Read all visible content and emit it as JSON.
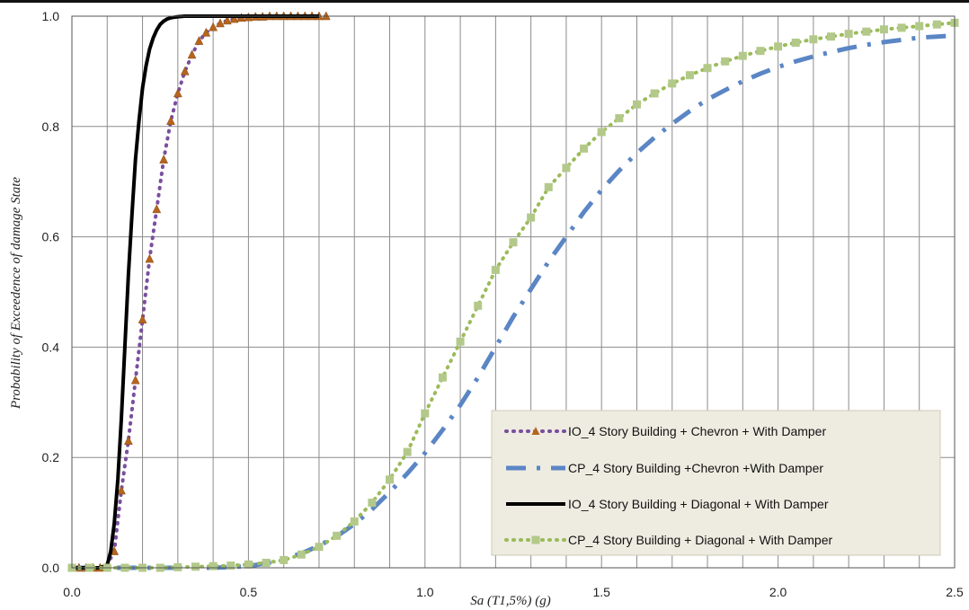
{
  "chart_data": {
    "type": "line",
    "title": "",
    "xlabel": "Sa (T1,5%) (g)",
    "ylabel": "Probability of Exceedence of damage State",
    "xlim": [
      0,
      2.5
    ],
    "ylim": [
      0,
      1.0
    ],
    "x_ticks": [
      "0.0",
      "0.5",
      "1.0",
      "1.5",
      "2.0",
      "2.5"
    ],
    "y_ticks": [
      "0.0",
      "0.2",
      "0.4",
      "0.6",
      "0.8",
      "1.0"
    ],
    "grid": true,
    "legend_position": "bottom-right",
    "series": [
      {
        "name": "IO_4 Story Building + Chevron + With Damper",
        "color": "#7a4f9e",
        "marker": "triangle",
        "line_style": "dotted",
        "x": [
          0.0,
          0.02,
          0.04,
          0.06,
          0.08,
          0.1,
          0.12,
          0.14,
          0.16,
          0.18,
          0.2,
          0.22,
          0.24,
          0.26,
          0.28,
          0.3,
          0.32,
          0.34,
          0.36,
          0.38,
          0.4,
          0.42,
          0.44,
          0.46,
          0.48,
          0.5,
          0.52,
          0.54,
          0.56,
          0.58,
          0.6,
          0.62,
          0.64,
          0.66,
          0.68,
          0.7,
          0.72
        ],
        "y": [
          0.0,
          0.0,
          0.0,
          0.0,
          0.0,
          0.005,
          0.03,
          0.14,
          0.23,
          0.34,
          0.45,
          0.56,
          0.65,
          0.74,
          0.81,
          0.86,
          0.9,
          0.93,
          0.955,
          0.97,
          0.98,
          0.987,
          0.992,
          0.995,
          0.997,
          0.998,
          0.999,
          0.999,
          1.0,
          1.0,
          1.0,
          1.0,
          1.0,
          1.0,
          1.0,
          1.0,
          1.0
        ]
      },
      {
        "name": "CP_4 Story Building +Chevron +With Damper",
        "color": "#5b86c5",
        "marker": "none",
        "line_style": "dash-dot",
        "x": [
          0.0,
          0.1,
          0.2,
          0.3,
          0.4,
          0.5,
          0.55,
          0.6,
          0.65,
          0.7,
          0.75,
          0.8,
          0.85,
          0.9,
          0.95,
          1.0,
          1.05,
          1.1,
          1.15,
          1.2,
          1.25,
          1.3,
          1.35,
          1.4,
          1.45,
          1.5,
          1.55,
          1.6,
          1.65,
          1.7,
          1.75,
          1.8,
          1.85,
          1.9,
          1.95,
          2.0,
          2.05,
          2.1,
          2.15,
          2.2,
          2.25,
          2.3,
          2.35,
          2.4,
          2.45,
          2.5
        ],
        "y": [
          0.0,
          0.0,
          0.0,
          0.0,
          0.0,
          0.003,
          0.008,
          0.016,
          0.026,
          0.04,
          0.057,
          0.079,
          0.106,
          0.137,
          0.171,
          0.208,
          0.25,
          0.295,
          0.345,
          0.4,
          0.455,
          0.505,
          0.555,
          0.6,
          0.645,
          0.685,
          0.72,
          0.752,
          0.78,
          0.805,
          0.828,
          0.849,
          0.866,
          0.882,
          0.896,
          0.908,
          0.918,
          0.927,
          0.935,
          0.942,
          0.948,
          0.953,
          0.957,
          0.961,
          0.963,
          0.965
        ]
      },
      {
        "name": "IO_4 Story Building + Diagonal + With Damper",
        "color": "#000000",
        "marker": "none",
        "line_style": "solid",
        "x": [
          0.0,
          0.05,
          0.08,
          0.1,
          0.11,
          0.12,
          0.13,
          0.14,
          0.15,
          0.16,
          0.17,
          0.18,
          0.19,
          0.2,
          0.21,
          0.22,
          0.23,
          0.24,
          0.25,
          0.26,
          0.27,
          0.28,
          0.29,
          0.3,
          0.32,
          0.34,
          0.36,
          0.4,
          0.5,
          0.6,
          0.7
        ],
        "y": [
          0.0,
          0.0,
          0.0,
          0.005,
          0.03,
          0.08,
          0.16,
          0.27,
          0.4,
          0.53,
          0.64,
          0.74,
          0.81,
          0.87,
          0.91,
          0.94,
          0.96,
          0.975,
          0.985,
          0.991,
          0.995,
          0.997,
          0.998,
          0.999,
          1.0,
          1.0,
          1.0,
          1.0,
          1.0,
          1.0,
          1.0
        ]
      },
      {
        "name": "CP_4 Story Building + Diagonal + With Damper",
        "color": "#9bbb59",
        "marker": "square",
        "line_style": "dotted",
        "x": [
          0.0,
          0.05,
          0.1,
          0.15,
          0.2,
          0.25,
          0.3,
          0.35,
          0.4,
          0.45,
          0.5,
          0.55,
          0.6,
          0.65,
          0.7,
          0.75,
          0.8,
          0.85,
          0.9,
          0.95,
          1.0,
          1.05,
          1.1,
          1.15,
          1.2,
          1.25,
          1.3,
          1.35,
          1.4,
          1.45,
          1.5,
          1.55,
          1.6,
          1.65,
          1.7,
          1.75,
          1.8,
          1.85,
          1.9,
          1.95,
          2.0,
          2.05,
          2.1,
          2.15,
          2.2,
          2.25,
          2.3,
          2.35,
          2.4,
          2.45,
          2.5
        ],
        "y": [
          0.0,
          0.0,
          0.0,
          0.0,
          0.0,
          0.0,
          0.001,
          0.002,
          0.003,
          0.004,
          0.006,
          0.009,
          0.014,
          0.024,
          0.038,
          0.058,
          0.084,
          0.118,
          0.16,
          0.21,
          0.28,
          0.345,
          0.41,
          0.475,
          0.54,
          0.59,
          0.635,
          0.69,
          0.725,
          0.76,
          0.79,
          0.815,
          0.84,
          0.86,
          0.878,
          0.893,
          0.906,
          0.918,
          0.928,
          0.937,
          0.945,
          0.952,
          0.958,
          0.963,
          0.968,
          0.972,
          0.976,
          0.979,
          0.982,
          0.985,
          0.988
        ]
      }
    ]
  }
}
